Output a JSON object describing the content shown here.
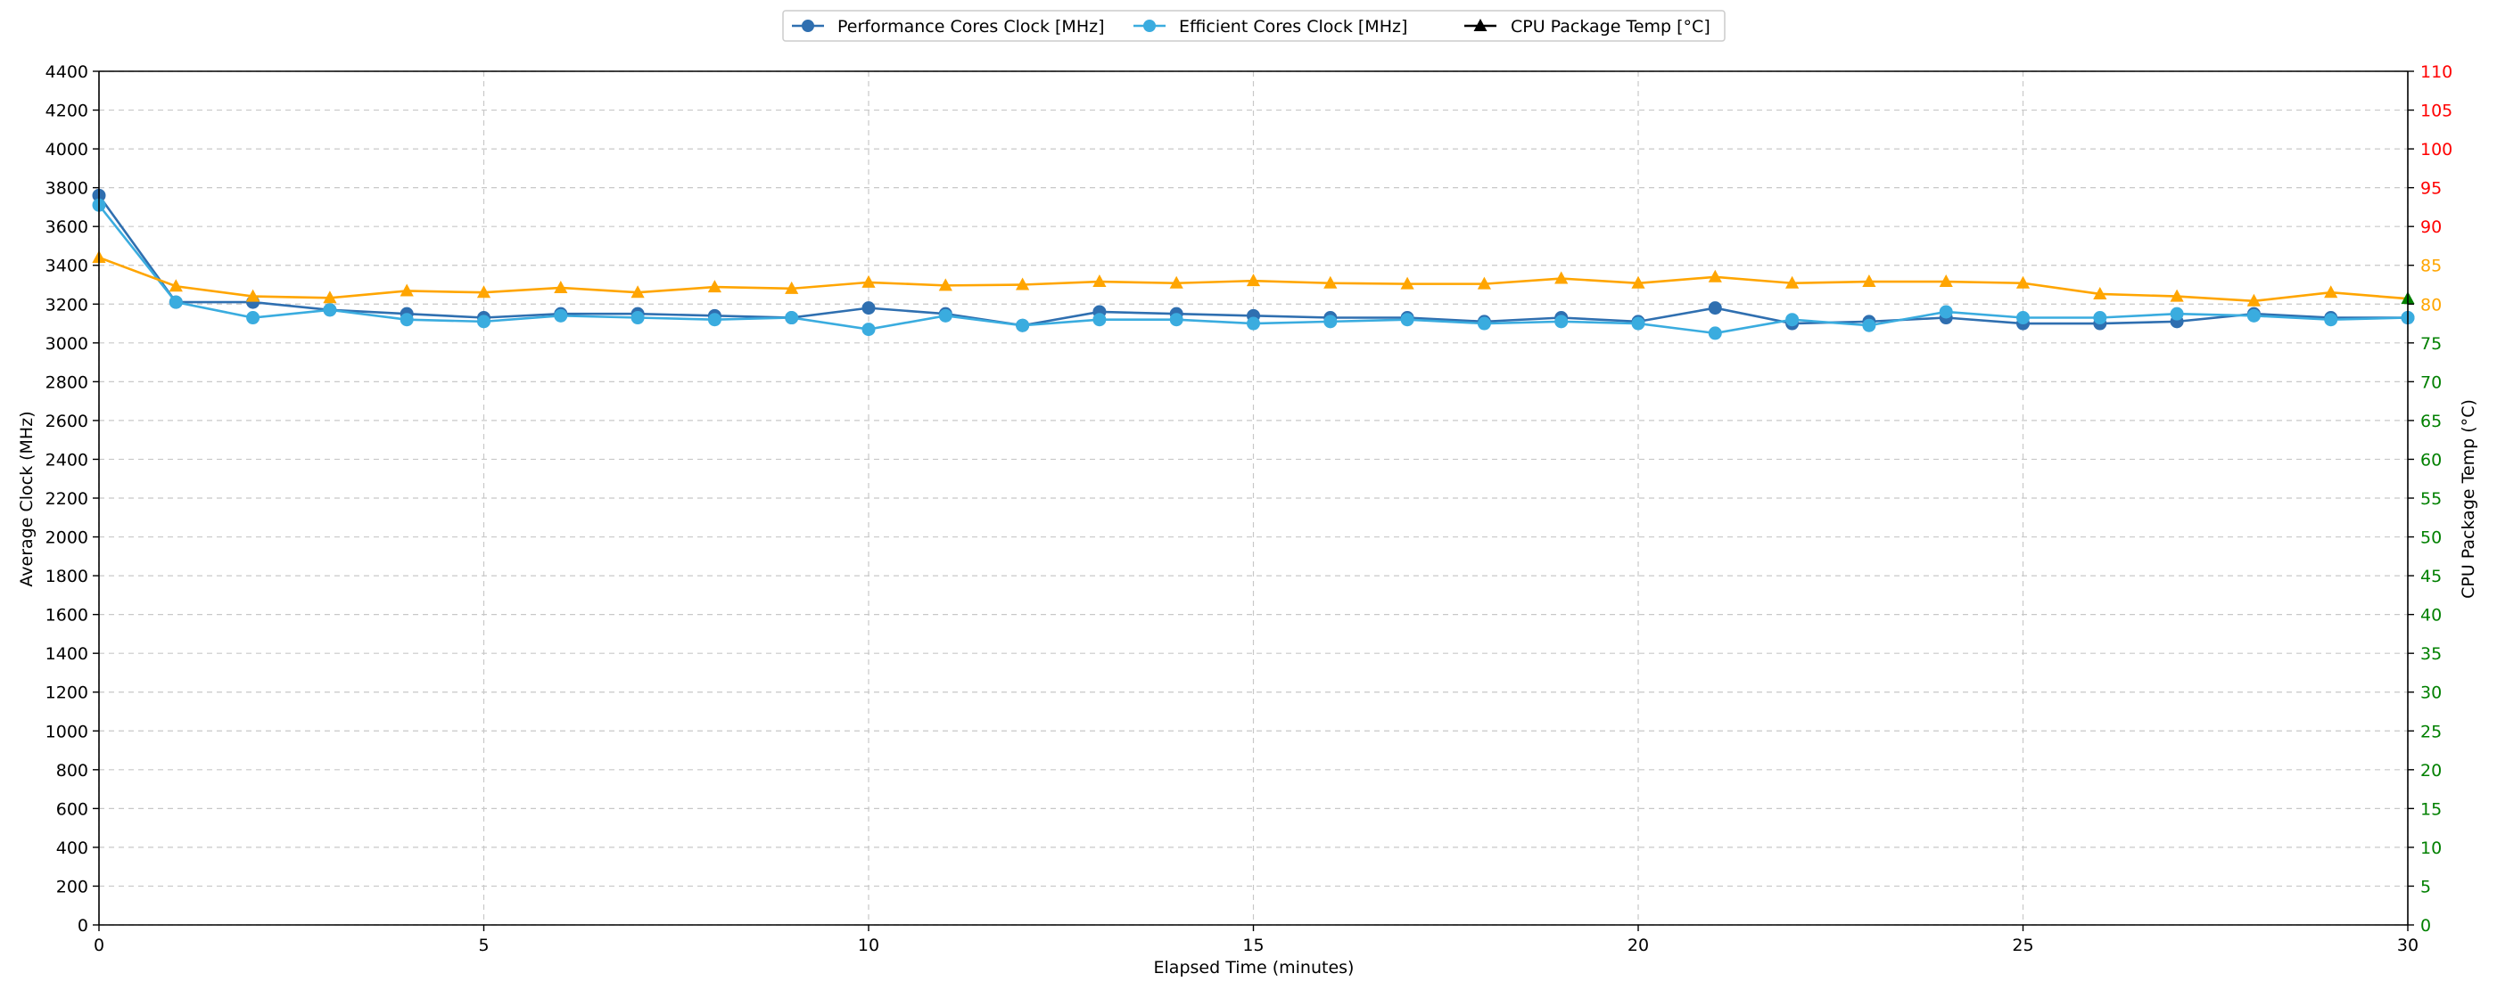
{
  "chart_data": {
    "type": "line",
    "xlabel": "Elapsed Time (minutes)",
    "ylabel_left": "Average Clock (MHz)",
    "ylabel_right": "CPU Package Temp (°C)",
    "xlim": [
      0,
      30
    ],
    "ylim_left": [
      0,
      4400
    ],
    "ylim_right": [
      0,
      110
    ],
    "x_ticks": [
      0,
      5,
      10,
      15,
      20,
      25,
      30
    ],
    "y_left_ticks": [
      0,
      200,
      400,
      600,
      800,
      1000,
      1200,
      1400,
      1600,
      1800,
      2000,
      2200,
      2400,
      2600,
      2800,
      3000,
      3200,
      3400,
      3600,
      3800,
      4000,
      4200,
      4400
    ],
    "y_right_ticks": [
      {
        "value": 0,
        "color": "#008000"
      },
      {
        "value": 5,
        "color": "#008000"
      },
      {
        "value": 10,
        "color": "#008000"
      },
      {
        "value": 15,
        "color": "#008000"
      },
      {
        "value": 20,
        "color": "#008000"
      },
      {
        "value": 25,
        "color": "#008000"
      },
      {
        "value": 30,
        "color": "#008000"
      },
      {
        "value": 35,
        "color": "#008000"
      },
      {
        "value": 40,
        "color": "#008000"
      },
      {
        "value": 45,
        "color": "#008000"
      },
      {
        "value": 50,
        "color": "#008000"
      },
      {
        "value": 55,
        "color": "#008000"
      },
      {
        "value": 60,
        "color": "#008000"
      },
      {
        "value": 65,
        "color": "#008000"
      },
      {
        "value": 70,
        "color": "#008000"
      },
      {
        "value": 75,
        "color": "#008000"
      },
      {
        "value": 80,
        "color": "#FFA500"
      },
      {
        "value": 85,
        "color": "#FFA500"
      },
      {
        "value": 90,
        "color": "#FF0000"
      },
      {
        "value": 95,
        "color": "#FF0000"
      },
      {
        "value": 100,
        "color": "#FF0000"
      },
      {
        "value": 105,
        "color": "#FF0000"
      },
      {
        "value": 110,
        "color": "#FF0000"
      }
    ],
    "grid": true,
    "legend_position": "top-center",
    "x": [
      0,
      1,
      2,
      3,
      4,
      5,
      6,
      7,
      8,
      9,
      10,
      11,
      12,
      13,
      14,
      15,
      16,
      17,
      18,
      19,
      20,
      21,
      22,
      23,
      24,
      25,
      26,
      27,
      28,
      29,
      30
    ],
    "series": [
      {
        "name": "Performance Cores Clock [MHz]",
        "axis": "left",
        "color": "#2f6fb0",
        "marker": "circle",
        "values": [
          3760,
          3210,
          3210,
          3170,
          3150,
          3130,
          3150,
          3150,
          3140,
          3130,
          3180,
          3150,
          3090,
          3160,
          3150,
          3140,
          3130,
          3130,
          3110,
          3130,
          3110,
          3180,
          3100,
          3110,
          3130,
          3100,
          3100,
          3110,
          3150,
          3130,
          3130
        ]
      },
      {
        "name": "Efficient Cores Clock [MHz]",
        "axis": "left",
        "color": "#3aacdf",
        "marker": "circle",
        "values": [
          3710,
          3210,
          3130,
          3170,
          3120,
          3110,
          3140,
          3130,
          3120,
          3130,
          3070,
          3140,
          3090,
          3120,
          3120,
          3100,
          3110,
          3120,
          3100,
          3110,
          3100,
          3050,
          3120,
          3090,
          3160,
          3130,
          3130,
          3150,
          3140,
          3120,
          3130
        ]
      },
      {
        "name": "CPU Package Temp [°C]",
        "axis": "right",
        "color": "#FFA500",
        "legend_color": "#000000",
        "marker": "triangle",
        "values": [
          86,
          82.3,
          81,
          80.8,
          81.7,
          81.5,
          82.1,
          81.5,
          82.2,
          82,
          82.8,
          82.4,
          82.5,
          82.9,
          82.7,
          83,
          82.7,
          82.6,
          82.6,
          83.3,
          82.7,
          83.5,
          82.7,
          82.9,
          82.9,
          82.7,
          81.3,
          81,
          80.4,
          81.5,
          80.7
        ],
        "marker_colors": [
          "#FFA500",
          "#FFA500",
          "#FFA500",
          "#FFA500",
          "#FFA500",
          "#FFA500",
          "#FFA500",
          "#FFA500",
          "#FFA500",
          "#FFA500",
          "#FFA500",
          "#FFA500",
          "#FFA500",
          "#FFA500",
          "#FFA500",
          "#FFA500",
          "#FFA500",
          "#FFA500",
          "#FFA500",
          "#FFA500",
          "#FFA500",
          "#FFA500",
          "#FFA500",
          "#FFA500",
          "#FFA500",
          "#FFA500",
          "#FFA500",
          "#FFA500",
          "#FFA500",
          "#FFA500",
          "#008000"
        ]
      }
    ]
  }
}
